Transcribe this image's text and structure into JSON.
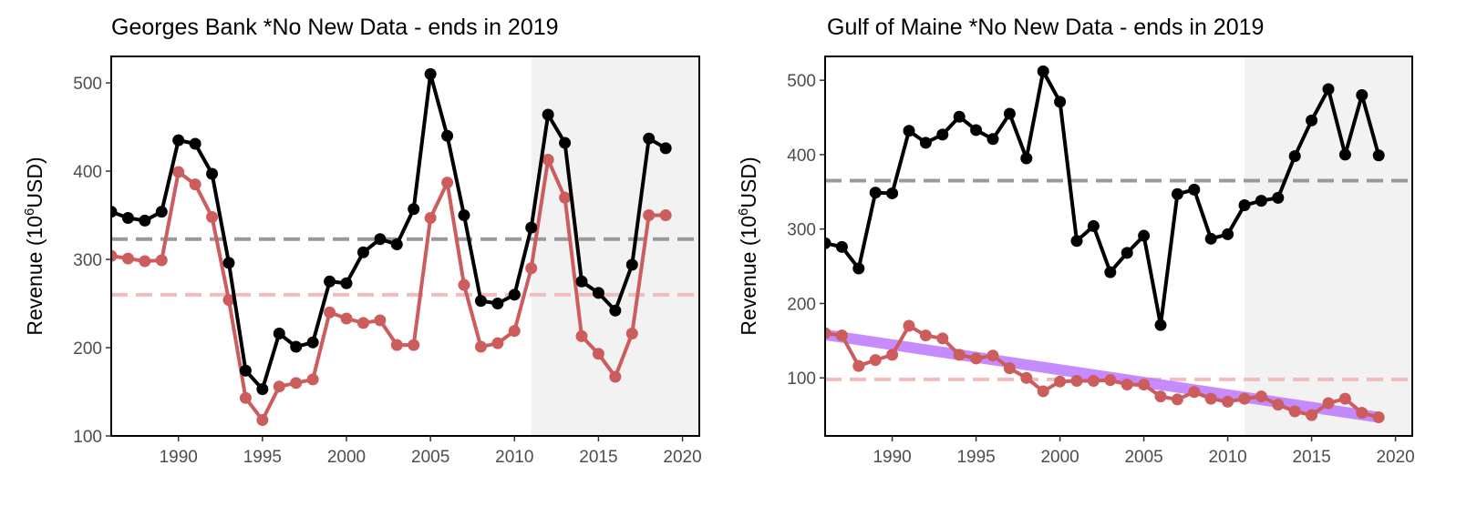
{
  "chart_data": [
    {
      "type": "line",
      "title": "Georges Bank *No New Data - ends in 2019",
      "ylabel_main": "Revenue (10",
      "ylabel_sup": "6",
      "ylabel_tail": "USD)",
      "xlim": [
        1986,
        2021
      ],
      "ylim": [
        100,
        530
      ],
      "xticks": [
        1990,
        1995,
        2000,
        2005,
        2010,
        2015,
        2020
      ],
      "yticks": [
        100,
        200,
        300,
        400,
        500
      ],
      "shaded_region": [
        2011,
        2021
      ],
      "x": [
        1986,
        1987,
        1988,
        1989,
        1990,
        1991,
        1992,
        1993,
        1994,
        1995,
        1996,
        1997,
        1998,
        1999,
        2000,
        2001,
        2002,
        2003,
        2004,
        2005,
        2006,
        2007,
        2008,
        2009,
        2010,
        2011,
        2012,
        2013,
        2014,
        2015,
        2016,
        2017,
        2018,
        2019
      ],
      "series": [
        {
          "color": "#000000",
          "values": [
            354,
            347,
            344,
            354,
            435,
            431,
            397,
            296,
            174,
            153,
            216,
            201,
            206,
            275,
            273,
            308,
            323,
            317,
            357,
            510,
            440,
            350,
            253,
            250,
            260,
            336,
            464,
            432,
            275,
            262,
            242,
            294,
            437,
            426
          ],
          "mean": 323
        },
        {
          "color": "#cd5c5c",
          "values": [
            304,
            301,
            298,
            299,
            399,
            385,
            348,
            254,
            143,
            118,
            156,
            160,
            164,
            240,
            233,
            228,
            231,
            203,
            203,
            347,
            387,
            271,
            201,
            205,
            219,
            290,
            413,
            370,
            213,
            193,
            167,
            216,
            350,
            350
          ],
          "mean": 260
        }
      ]
    },
    {
      "type": "line",
      "title": "Gulf of Maine *No New Data - ends in 2019",
      "ylabel_main": "Revenue (10",
      "ylabel_sup": "6",
      "ylabel_tail": "USD)",
      "xlim": [
        1986,
        2021
      ],
      "ylim": [
        22,
        532
      ],
      "xticks": [
        1990,
        1995,
        2000,
        2005,
        2010,
        2015,
        2020
      ],
      "yticks": [
        100,
        200,
        300,
        400,
        500
      ],
      "shaded_region": [
        2011,
        2021
      ],
      "x": [
        1986,
        1987,
        1988,
        1989,
        1990,
        1991,
        1992,
        1993,
        1994,
        1995,
        1996,
        1997,
        1998,
        1999,
        2000,
        2001,
        2002,
        2003,
        2004,
        2005,
        2006,
        2007,
        2008,
        2009,
        2010,
        2011,
        2012,
        2013,
        2014,
        2015,
        2016,
        2017,
        2018,
        2019
      ],
      "series": [
        {
          "color": "#000000",
          "values": [
            281,
            276,
            247,
            349,
            348,
            432,
            416,
            427,
            451,
            433,
            421,
            455,
            395,
            512,
            471,
            284,
            304,
            242,
            268,
            291,
            171,
            347,
            353,
            287,
            293,
            332,
            338,
            342,
            398,
            446,
            488,
            400,
            480,
            399
          ],
          "mean": 365
        },
        {
          "color": "#cd5c5c",
          "values": [
            160,
            157,
            116,
            124,
            131,
            170,
            157,
            153,
            131,
            126,
            130,
            113,
            100,
            82,
            95,
            96,
            96,
            97,
            91,
            91,
            75,
            71,
            81,
            72,
            68,
            72,
            75,
            64,
            55,
            50,
            66,
            72,
            53,
            47
          ],
          "mean": 98
        }
      ],
      "trend": {
        "color": "#bf7fff",
        "x": [
          1986,
          2019
        ],
        "values": [
          158,
          47
        ]
      }
    }
  ]
}
